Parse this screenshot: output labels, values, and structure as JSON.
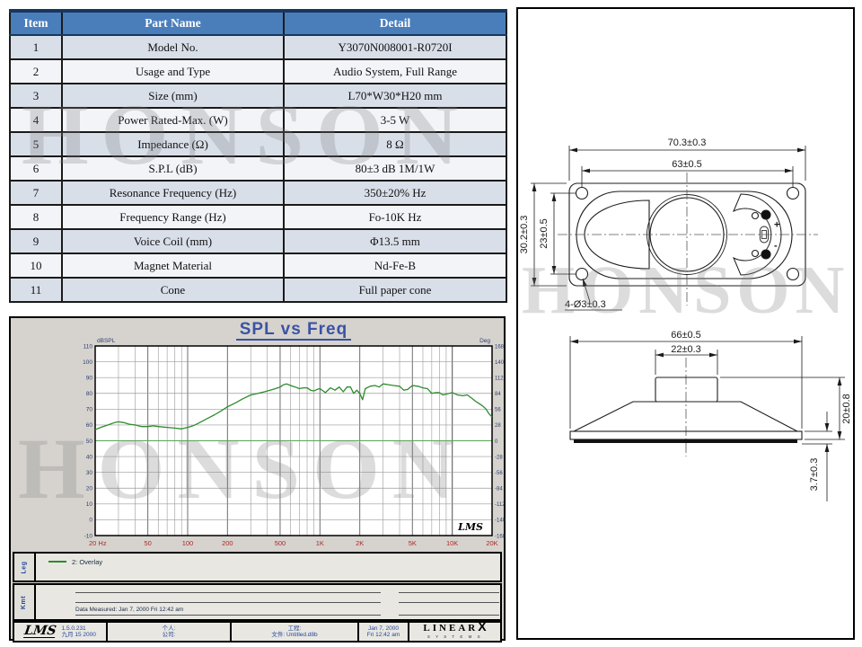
{
  "watermark": "HONSON",
  "colors": {
    "header_bg": "#4a7ebb",
    "header_border": "#17375e",
    "row_alt": "#d9dfe9",
    "title_blue": "#3a53a4",
    "curve_green": "#2e8b2e",
    "x_label_red": "#b02828",
    "axis_label_blue": "#2f3f6f",
    "phase_zero_green": "#57a857"
  },
  "table": {
    "headers": [
      "Item",
      "Part Name",
      "Detail"
    ],
    "rows": [
      {
        "item": "1",
        "name": "Model No.",
        "detail": "Y3070N008001-R0720I"
      },
      {
        "item": "2",
        "name": "Usage and Type",
        "detail": "Audio System, Full Range"
      },
      {
        "item": "3",
        "name": "Size (mm)",
        "detail": "L70*W30*H20 mm"
      },
      {
        "item": "4",
        "name": "Power Rated-Max. (W)",
        "detail": "3-5 W"
      },
      {
        "item": "5",
        "name": "Impedance (Ω)",
        "detail": "8 Ω"
      },
      {
        "item": "6",
        "name": "S.P.L (dB)",
        "detail": "80±3 dB  1M/1W"
      },
      {
        "item": "7",
        "name": "Resonance Frequency (Hz)",
        "detail": "350±20% Hz"
      },
      {
        "item": "8",
        "name": "Frequency Range (Hz)",
        "detail": "Fo-10K Hz"
      },
      {
        "item": "9",
        "name": "Voice Coil (mm)",
        "detail": "Φ13.5 mm"
      },
      {
        "item": "10",
        "name": "Magnet Material",
        "detail": "Nd-Fe-B"
      },
      {
        "item": "11",
        "name": "Cone",
        "detail": "Full paper cone"
      }
    ]
  },
  "chart": {
    "title": "SPL vs Freq",
    "y_left_unit": "dBSPL",
    "y_right_unit": "Deg",
    "lms_logo": "LMS",
    "leg_label": "Leg",
    "kmt_label": "Kmt",
    "legend_entry": "2: Overlay",
    "data_measured": "Data Measured: Jan 7, 2000  Fri 12:42 am",
    "footer": {
      "version": "1.5.0.231",
      "version_date": "九月 15 2000",
      "person": "个人:",
      "company": "公司:",
      "project": "工程:",
      "file": "文件: Untitled.d8b",
      "date": "Jan 7, 2000",
      "time": "Fri 12:42 am",
      "brand_main": "LINEAR",
      "brand_x": "X",
      "brand_sub": "S Y S T E M S"
    }
  },
  "chart_data": {
    "type": "line",
    "title": "SPL vs Freq",
    "x_scale": "log",
    "xlim": [
      20,
      20000
    ],
    "ylim_left": [
      -10,
      110
    ],
    "ylim_right": [
      -168,
      168
    ],
    "xlabel": "Hz",
    "ylabel_left": "dBSPL",
    "ylabel_right": "Deg",
    "grid": true,
    "x_tick_labels": [
      "20 Hz",
      "50",
      "100",
      "200",
      "500",
      "1K",
      "2K",
      "5K",
      "10K",
      "20K"
    ],
    "x_tick_values": [
      20,
      50,
      100,
      200,
      500,
      1000,
      2000,
      5000,
      10000,
      20000
    ],
    "y_ticks_left": [
      110,
      100,
      90,
      80,
      70,
      60,
      50,
      40,
      30,
      20,
      10,
      0,
      -10
    ],
    "y_ticks_right": [
      168,
      140,
      112,
      84,
      56,
      28,
      0,
      -28,
      -56,
      -84,
      -112,
      -140,
      -168
    ],
    "series": [
      {
        "name": "2: Overlay",
        "color": "#2e8b2e",
        "points": [
          [
            20,
            57
          ],
          [
            22,
            58.5
          ],
          [
            25,
            60
          ],
          [
            28,
            61.5
          ],
          [
            30,
            62
          ],
          [
            33,
            61.5
          ],
          [
            36,
            60.5
          ],
          [
            40,
            60
          ],
          [
            45,
            59
          ],
          [
            50,
            59
          ],
          [
            55,
            59.5
          ],
          [
            60,
            59
          ],
          [
            70,
            58.5
          ],
          [
            80,
            58
          ],
          [
            90,
            57.5
          ],
          [
            100,
            58.5
          ],
          [
            110,
            59.5
          ],
          [
            120,
            61
          ],
          [
            140,
            64
          ],
          [
            160,
            66.5
          ],
          [
            180,
            69
          ],
          [
            200,
            71.5
          ],
          [
            230,
            74
          ],
          [
            260,
            76.5
          ],
          [
            300,
            79
          ],
          [
            340,
            80
          ],
          [
            380,
            81
          ],
          [
            420,
            82
          ],
          [
            460,
            83
          ],
          [
            500,
            84
          ],
          [
            530,
            85.5
          ],
          [
            560,
            86
          ],
          [
            600,
            85
          ],
          [
            650,
            84
          ],
          [
            700,
            83
          ],
          [
            750,
            83.5
          ],
          [
            800,
            83.5
          ],
          [
            850,
            82
          ],
          [
            900,
            81.5
          ],
          [
            950,
            82.5
          ],
          [
            1000,
            83
          ],
          [
            1100,
            80.5
          ],
          [
            1200,
            83.5
          ],
          [
            1300,
            82
          ],
          [
            1400,
            84
          ],
          [
            1500,
            81
          ],
          [
            1600,
            84
          ],
          [
            1700,
            84
          ],
          [
            1800,
            80
          ],
          [
            1900,
            82
          ],
          [
            2000,
            80
          ],
          [
            2100,
            76
          ],
          [
            2200,
            83
          ],
          [
            2400,
            84.5
          ],
          [
            2600,
            85
          ],
          [
            2800,
            84
          ],
          [
            3000,
            86
          ],
          [
            3300,
            85.5
          ],
          [
            3600,
            85
          ],
          [
            4000,
            84.5
          ],
          [
            4300,
            82
          ],
          [
            4600,
            82.5
          ],
          [
            5000,
            85
          ],
          [
            5500,
            84.5
          ],
          [
            6000,
            83.5
          ],
          [
            6500,
            83
          ],
          [
            7000,
            80
          ],
          [
            7500,
            80.5
          ],
          [
            8000,
            80.5
          ],
          [
            8500,
            79
          ],
          [
            9000,
            79.5
          ],
          [
            10000,
            80.5
          ],
          [
            11000,
            79
          ],
          [
            12000,
            78.5
          ],
          [
            13000,
            79
          ],
          [
            14000,
            77
          ],
          [
            15000,
            75
          ],
          [
            16000,
            73.5
          ],
          [
            17000,
            72
          ],
          [
            18000,
            70
          ],
          [
            19000,
            67
          ],
          [
            20000,
            65
          ]
        ]
      }
    ]
  },
  "drawing": {
    "dims": {
      "overall_w": "70.3±0.3",
      "hole_span": "63±0.5",
      "overall_h": "30.2±0.3",
      "hole_span_v": "23±0.5",
      "holes": "4-Ø3±0.3",
      "flange_w": "66±0.5",
      "magnet_w": "22±0.3",
      "total_h": "20±0.8",
      "flange_t": "3.7±0.3"
    },
    "polarity_plus": "+",
    "polarity_minus": "-"
  }
}
